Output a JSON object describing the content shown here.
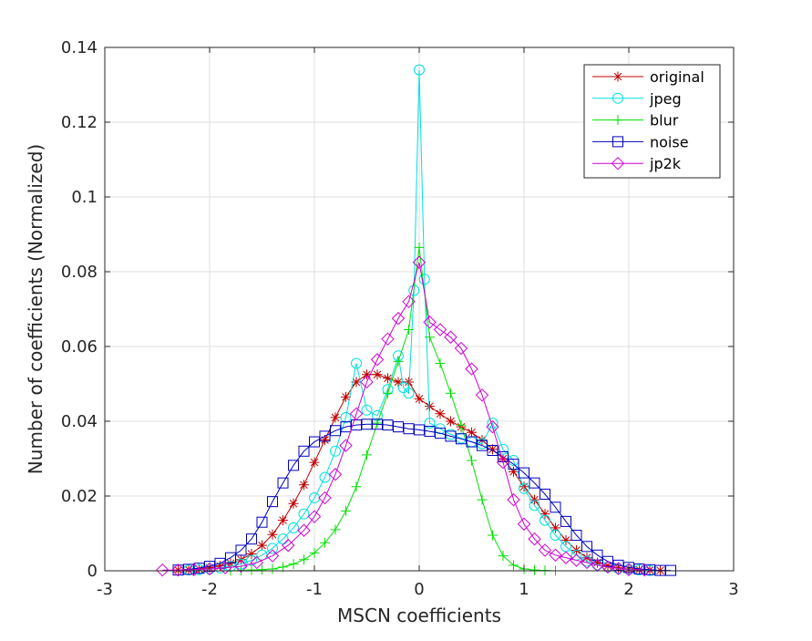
{
  "chart_data": {
    "type": "line",
    "title": "",
    "xlabel": "MSCN coefficients",
    "ylabel": "Number of coefficients (Normalized)",
    "xlim": [
      -3,
      3
    ],
    "ylim": [
      0,
      0.14
    ],
    "xticks": [
      -3,
      -2,
      -1,
      0,
      1,
      2,
      3
    ],
    "yticks": [
      0,
      0.02,
      0.04,
      0.06,
      0.08,
      0.1,
      0.12,
      0.14
    ],
    "ytick_labels": [
      "0",
      "0.02",
      "0.04",
      "0.06",
      "0.08",
      "0.1",
      "0.12",
      "0.14"
    ],
    "grid": true,
    "legend_position": "top-right",
    "series": [
      {
        "name": "original",
        "color": "#c00000",
        "marker": "asterisk",
        "x": [
          -2.3,
          -2.2,
          -2.1,
          -2.0,
          -1.9,
          -1.8,
          -1.7,
          -1.6,
          -1.5,
          -1.4,
          -1.3,
          -1.2,
          -1.1,
          -1.0,
          -0.9,
          -0.8,
          -0.7,
          -0.6,
          -0.5,
          -0.4,
          -0.3,
          -0.2,
          -0.1,
          0.0,
          0.1,
          0.2,
          0.3,
          0.4,
          0.5,
          0.6,
          0.7,
          0.8,
          0.9,
          1.0,
          1.1,
          1.2,
          1.3,
          1.4,
          1.5,
          1.6,
          1.7,
          1.8,
          1.9,
          2.0,
          2.1,
          2.2,
          2.3
        ],
        "y": [
          0.0002,
          0.0003,
          0.0005,
          0.0008,
          0.0013,
          0.002,
          0.003,
          0.0045,
          0.0068,
          0.0097,
          0.0135,
          0.018,
          0.023,
          0.029,
          0.035,
          0.041,
          0.0465,
          0.0505,
          0.0525,
          0.0525,
          0.0515,
          0.0505,
          0.0505,
          0.046,
          0.044,
          0.042,
          0.04,
          0.0385,
          0.037,
          0.035,
          0.0325,
          0.03,
          0.0265,
          0.0225,
          0.019,
          0.0152,
          0.0115,
          0.0082,
          0.0055,
          0.0035,
          0.0022,
          0.0013,
          0.0008,
          0.0005,
          0.0003,
          0.0002,
          0.0001
        ]
      },
      {
        "name": "jpeg",
        "color": "#00e0e0",
        "marker": "circle",
        "x": [
          -2.2,
          -2.1,
          -2.0,
          -1.9,
          -1.8,
          -1.7,
          -1.6,
          -1.5,
          -1.4,
          -1.3,
          -1.2,
          -1.1,
          -1.0,
          -0.9,
          -0.8,
          -0.7,
          -0.6,
          -0.5,
          -0.4,
          -0.3,
          -0.2,
          -0.15,
          -0.1,
          -0.05,
          0.0,
          0.05,
          0.1,
          0.2,
          0.3,
          0.4,
          0.5,
          0.6,
          0.7,
          0.8,
          0.9,
          1.0,
          1.1,
          1.2,
          1.3,
          1.4,
          1.5,
          1.6,
          1.7,
          1.8,
          1.9,
          2.0,
          2.1,
          2.2
        ],
        "y": [
          0.0002,
          0.0003,
          0.0005,
          0.0008,
          0.0012,
          0.0018,
          0.0028,
          0.0042,
          0.006,
          0.0085,
          0.0115,
          0.0152,
          0.0195,
          0.025,
          0.032,
          0.041,
          0.0555,
          0.043,
          0.0415,
          0.0485,
          0.0575,
          0.049,
          0.0475,
          0.075,
          0.134,
          0.078,
          0.0395,
          0.038,
          0.0365,
          0.0355,
          0.0345,
          0.034,
          0.0395,
          0.0325,
          0.0295,
          0.022,
          0.0175,
          0.0135,
          0.0095,
          0.0065,
          0.0042,
          0.0026,
          0.0016,
          0.001,
          0.0006,
          0.0004,
          0.0002,
          0.0001
        ]
      },
      {
        "name": "blur",
        "color": "#00e000",
        "marker": "plus",
        "x": [
          -1.8,
          -1.7,
          -1.6,
          -1.5,
          -1.4,
          -1.3,
          -1.2,
          -1.1,
          -1.0,
          -0.9,
          -0.8,
          -0.7,
          -0.6,
          -0.5,
          -0.4,
          -0.3,
          -0.2,
          -0.1,
          0.0,
          0.1,
          0.2,
          0.3,
          0.4,
          0.5,
          0.6,
          0.7,
          0.8,
          0.9,
          1.0,
          1.1,
          1.2,
          1.3
        ],
        "y": [
          0.0,
          0.0001,
          0.0002,
          0.0003,
          0.0005,
          0.001,
          0.0018,
          0.003,
          0.0048,
          0.0075,
          0.011,
          0.016,
          0.0225,
          0.031,
          0.0395,
          0.0475,
          0.056,
          0.0645,
          0.0865,
          0.0625,
          0.0555,
          0.0475,
          0.039,
          0.0295,
          0.019,
          0.0095,
          0.004,
          0.0015,
          0.0005,
          0.0002,
          0.0001,
          0.0
        ]
      },
      {
        "name": "noise",
        "color": "#0000c0",
        "marker": "square",
        "x": [
          -2.3,
          -2.2,
          -2.1,
          -2.0,
          -1.9,
          -1.8,
          -1.7,
          -1.6,
          -1.5,
          -1.4,
          -1.3,
          -1.2,
          -1.1,
          -1.0,
          -0.9,
          -0.8,
          -0.7,
          -0.6,
          -0.5,
          -0.4,
          -0.3,
          -0.2,
          -0.1,
          0.0,
          0.1,
          0.2,
          0.3,
          0.4,
          0.5,
          0.6,
          0.7,
          0.8,
          0.9,
          1.0,
          1.1,
          1.2,
          1.3,
          1.4,
          1.5,
          1.6,
          1.7,
          1.8,
          1.9,
          2.0,
          2.1,
          2.2,
          2.3,
          2.4
        ],
        "y": [
          0.0002,
          0.0004,
          0.0007,
          0.0012,
          0.002,
          0.0035,
          0.0055,
          0.0085,
          0.013,
          0.0185,
          0.0235,
          0.0282,
          0.032,
          0.0345,
          0.036,
          0.0375,
          0.0385,
          0.039,
          0.0392,
          0.0392,
          0.039,
          0.0385,
          0.038,
          0.0377,
          0.0373,
          0.0368,
          0.036,
          0.0353,
          0.0345,
          0.0335,
          0.0322,
          0.0305,
          0.0285,
          0.0262,
          0.0235,
          0.0205,
          0.017,
          0.0132,
          0.0095,
          0.0065,
          0.0042,
          0.0025,
          0.0015,
          0.0009,
          0.0005,
          0.0003,
          0.0001,
          0.0001
        ]
      },
      {
        "name": "jp2k",
        "color": "#d000d0",
        "marker": "diamond",
        "x": [
          -2.45,
          -2.3,
          -2.15,
          -2.0,
          -1.85,
          -1.7,
          -1.55,
          -1.4,
          -1.25,
          -1.1,
          -1.0,
          -0.9,
          -0.8,
          -0.7,
          -0.6,
          -0.5,
          -0.4,
          -0.3,
          -0.2,
          -0.1,
          0.0,
          0.1,
          0.2,
          0.3,
          0.4,
          0.5,
          0.6,
          0.7,
          0.8,
          0.9,
          1.0,
          1.1,
          1.2,
          1.3,
          1.4,
          1.5,
          1.6,
          1.7,
          1.8,
          1.9,
          2.0,
          2.15
        ],
        "y": [
          0.0002,
          0.0002,
          0.0003,
          0.0005,
          0.0008,
          0.0012,
          0.0022,
          0.004,
          0.0068,
          0.0108,
          0.0145,
          0.0195,
          0.0258,
          0.0335,
          0.042,
          0.0505,
          0.0565,
          0.062,
          0.0675,
          0.072,
          0.0825,
          0.0665,
          0.0645,
          0.0625,
          0.0595,
          0.054,
          0.047,
          0.0385,
          0.029,
          0.019,
          0.0125,
          0.0085,
          0.0055,
          0.0042,
          0.0035,
          0.0028,
          0.0022,
          0.0015,
          0.001,
          0.0006,
          0.0003,
          0.0002
        ]
      }
    ]
  }
}
